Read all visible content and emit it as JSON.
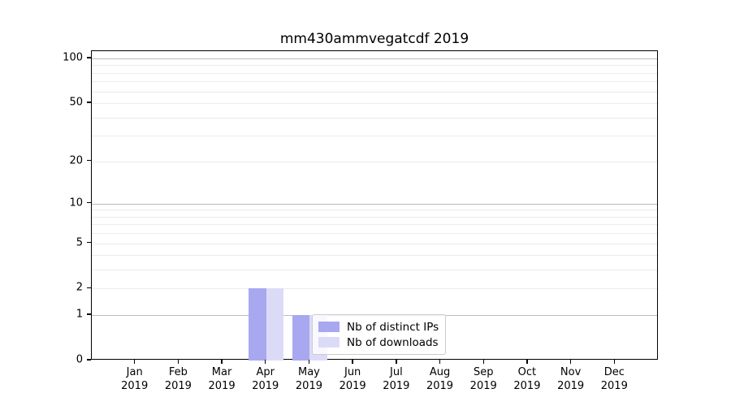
{
  "chart_data": {
    "type": "bar",
    "title": "mm430ammvegatcdf 2019",
    "xlabel": "",
    "ylabel": "",
    "categories": [
      "Jan",
      "Feb",
      "Mar",
      "Apr",
      "May",
      "Jun",
      "Jul",
      "Aug",
      "Sep",
      "Oct",
      "Nov",
      "Dec"
    ],
    "x_tick_year": "2019",
    "series": [
      {
        "name": "Nb of distinct IPs",
        "color": "#a8a8f0",
        "values": [
          0,
          0,
          0,
          2,
          1,
          0,
          0,
          0,
          0,
          0,
          0,
          0
        ]
      },
      {
        "name": "Nb of downloads",
        "color": "#dbdbf8",
        "values": [
          0,
          0,
          0,
          2,
          1,
          0,
          0,
          0,
          0,
          0,
          0,
          0
        ]
      }
    ],
    "y_scale": "log10(1+y)",
    "ylim": [
      0,
      112
    ],
    "y_ticks": [
      0,
      1,
      2,
      5,
      10,
      20,
      50,
      100
    ],
    "y_major_gridlines": [
      1,
      10,
      100
    ],
    "y_minor_gridlines": [
      2,
      3,
      4,
      5,
      6,
      7,
      8,
      9,
      20,
      30,
      40,
      50,
      60,
      70,
      80,
      90
    ],
    "grid": true,
    "legend_position": "lower center"
  }
}
